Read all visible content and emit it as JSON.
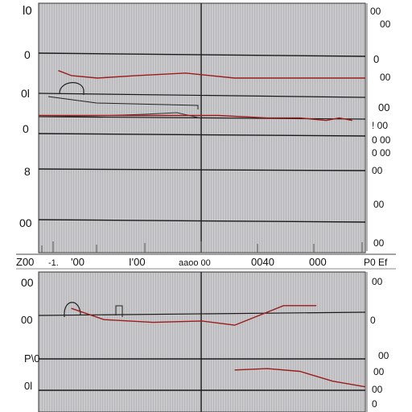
{
  "chart_data": [
    {
      "type": "line",
      "left_labels": [
        "l0",
        "0",
        "0l",
        "0",
        "8",
        "00"
      ],
      "bottom_labels": [
        "Z00",
        "-1.",
        "'00",
        "I'00",
        "aaoo 00",
        "0040",
        "000",
        "P0 Ef"
      ],
      "right_labels": [
        "00",
        "00",
        "0",
        "00",
        "00",
        "! 00",
        "0 00",
        "0 00",
        "00",
        "00",
        "00"
      ],
      "series": [
        {
          "color": "#9b1c1c",
          "x": [
            6,
            10,
            18,
            30,
            45,
            60,
            80,
            100
          ],
          "y": [
            0.73,
            0.71,
            0.7,
            0.71,
            0.72,
            0.7,
            0.7,
            0.7
          ]
        },
        {
          "color": "#9b1c1c",
          "x": [
            0,
            20,
            40,
            55,
            70,
            80,
            88,
            92,
            96
          ],
          "y": [
            0.55,
            0.55,
            0.55,
            0.55,
            0.54,
            0.54,
            0.53,
            0.54,
            0.53
          ]
        }
      ]
    },
    {
      "type": "line",
      "left_labels": [
        "00",
        "00",
        "P\\0",
        "0l"
      ],
      "right_labels": [
        "00",
        "0",
        "00",
        "00",
        "00",
        "0"
      ],
      "series": [
        {
          "color": "#9b1c1c",
          "x": [
            10,
            20,
            35,
            50,
            60,
            75,
            85
          ],
          "y": [
            0.74,
            0.66,
            0.64,
            0.65,
            0.62,
            0.76,
            0.76
          ]
        },
        {
          "color": "#9b1c1c",
          "x": [
            60,
            70,
            80,
            90,
            100
          ],
          "y": [
            0.3,
            0.31,
            0.29,
            0.22,
            0.18
          ]
        }
      ]
    }
  ]
}
